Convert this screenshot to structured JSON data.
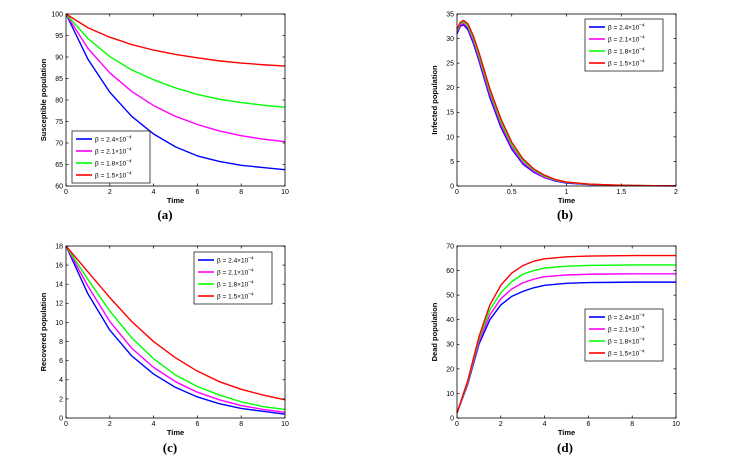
{
  "chart_data": [
    {
      "type": "line",
      "caption": "(a)",
      "xlabel": "Time",
      "ylabel": "Susceptible population",
      "xlim": [
        0,
        10
      ],
      "ylim": [
        60,
        100
      ],
      "xticks": [
        "0",
        "2",
        "4",
        "6",
        "8",
        "10"
      ],
      "yticks": [
        "60",
        "65",
        "70",
        "75",
        "80",
        "85",
        "90",
        "95",
        "100"
      ],
      "legend_position": "bottom-left",
      "x": [
        0,
        1,
        2,
        3,
        4,
        5,
        6,
        7,
        8,
        9,
        10
      ],
      "series": [
        {
          "name": "β = 2.4×10",
          "exp": "−4",
          "color": "#0000ff",
          "values": [
            100,
            89.5,
            81.8,
            76.2,
            72.1,
            69.1,
            67.0,
            65.7,
            64.8,
            64.3,
            63.8
          ]
        },
        {
          "name": "β = 2.1×10",
          "exp": "−4",
          "color": "#ff00ff",
          "values": [
            100,
            92.0,
            86.3,
            82.0,
            78.7,
            76.2,
            74.3,
            72.8,
            71.7,
            70.9,
            70.3
          ]
        },
        {
          "name": "β = 1.8×10",
          "exp": "−4",
          "color": "#00ff00",
          "values": [
            100,
            94.3,
            90.1,
            87.0,
            84.7,
            82.8,
            81.3,
            80.2,
            79.4,
            78.8,
            78.3
          ]
        },
        {
          "name": "β = 1.5×10",
          "exp": "−4",
          "color": "#ff0000",
          "values": [
            100,
            96.8,
            94.6,
            92.9,
            91.6,
            90.6,
            89.8,
            89.1,
            88.6,
            88.2,
            87.9
          ]
        }
      ]
    },
    {
      "type": "line",
      "caption": "(b)",
      "xlabel": "Time",
      "ylabel": "Infected population",
      "xlim": [
        0,
        2
      ],
      "ylim": [
        0,
        35
      ],
      "xticks": [
        "0",
        "0.5",
        "1",
        "1.5",
        "2"
      ],
      "yticks": [
        "0",
        "5",
        "10",
        "15",
        "20",
        "25",
        "30",
        "35"
      ],
      "legend_position": "top-right",
      "x": [
        0,
        0.03,
        0.06,
        0.1,
        0.15,
        0.2,
        0.3,
        0.4,
        0.5,
        0.6,
        0.7,
        0.8,
        0.9,
        1.0,
        1.2,
        1.4,
        1.6,
        1.8,
        2.0
      ],
      "series": [
        {
          "name": "β = 2.4×10",
          "exp": "−4",
          "color": "#0000ff",
          "values": [
            31.0,
            32.5,
            32.8,
            31.8,
            29.0,
            25.5,
            18.0,
            12.0,
            7.5,
            4.5,
            2.8,
            1.7,
            1.0,
            0.6,
            0.3,
            0.15,
            0.08,
            0.04,
            0.02
          ]
        },
        {
          "name": "β = 2.1×10",
          "exp": "−4",
          "color": "#ff00ff",
          "values": [
            31.3,
            32.8,
            33.1,
            32.2,
            29.5,
            26.0,
            18.6,
            12.5,
            7.9,
            4.8,
            3.0,
            1.8,
            1.1,
            0.7,
            0.35,
            0.18,
            0.09,
            0.05,
            0.02
          ]
        },
        {
          "name": "β = 1.8×10",
          "exp": "−4",
          "color": "#00ff00",
          "values": [
            31.6,
            33.1,
            33.4,
            32.6,
            30.0,
            26.6,
            19.2,
            13.1,
            8.4,
            5.2,
            3.3,
            2.0,
            1.2,
            0.75,
            0.38,
            0.2,
            0.1,
            0.05,
            0.03
          ]
        },
        {
          "name": "β = 1.5×10",
          "exp": "−4",
          "color": "#ff0000",
          "values": [
            31.9,
            33.3,
            33.7,
            33.0,
            30.5,
            27.2,
            19.8,
            13.7,
            8.9,
            5.6,
            3.5,
            2.2,
            1.3,
            0.8,
            0.4,
            0.22,
            0.11,
            0.06,
            0.03
          ]
        }
      ]
    },
    {
      "type": "line",
      "caption": "(c)",
      "xlabel": "Time",
      "ylabel": "Recovered population",
      "xlim": [
        0,
        10
      ],
      "ylim": [
        0,
        18
      ],
      "xticks": [
        "0",
        "2",
        "4",
        "6",
        "8",
        "10"
      ],
      "yticks": [
        "0",
        "2",
        "4",
        "6",
        "8",
        "10",
        "12",
        "14",
        "16",
        "18"
      ],
      "legend_position": "top-right",
      "x": [
        0,
        1,
        2,
        3,
        4,
        5,
        6,
        7,
        8,
        9,
        10
      ],
      "series": [
        {
          "name": "β = 2.4×10",
          "exp": "−4",
          "color": "#0000ff",
          "values": [
            18,
            13.0,
            9.2,
            6.5,
            4.6,
            3.2,
            2.2,
            1.5,
            1.0,
            0.7,
            0.4
          ]
        },
        {
          "name": "β = 2.1×10",
          "exp": "−4",
          "color": "#ff00ff",
          "values": [
            18,
            13.8,
            10.1,
            7.3,
            5.3,
            3.8,
            2.7,
            1.9,
            1.3,
            0.9,
            0.6
          ]
        },
        {
          "name": "β = 1.8×10",
          "exp": "−4",
          "color": "#00ff00",
          "values": [
            18,
            14.5,
            11.2,
            8.4,
            6.2,
            4.5,
            3.3,
            2.4,
            1.7,
            1.2,
            0.9
          ]
        },
        {
          "name": "β = 1.5×10",
          "exp": "−4",
          "color": "#ff0000",
          "values": [
            18,
            15.3,
            12.6,
            10.1,
            8.0,
            6.3,
            4.9,
            3.8,
            3.0,
            2.4,
            1.9
          ]
        }
      ]
    },
    {
      "type": "line",
      "caption": "(d)",
      "xlabel": "Time",
      "ylabel": "Dead population",
      "xlim": [
        0,
        10
      ],
      "ylim": [
        0,
        70
      ],
      "xticks": [
        "0",
        "2",
        "4",
        "6",
        "8",
        "10"
      ],
      "yticks": [
        "0",
        "10",
        "20",
        "30",
        "40",
        "50",
        "60",
        "70"
      ],
      "legend_position": "bottom-right",
      "x": [
        0,
        0.5,
        1,
        1.5,
        2,
        2.5,
        3,
        3.5,
        4,
        5,
        6,
        7,
        8,
        9,
        10
      ],
      "series": [
        {
          "name": "β = 2.4×10",
          "exp": "−4",
          "color": "#0000ff",
          "values": [
            2,
            14,
            30,
            40,
            46,
            49.5,
            51.5,
            53,
            54,
            54.8,
            55.1,
            55.2,
            55.3,
            55.3,
            55.3
          ]
        },
        {
          "name": "β = 2.1×10",
          "exp": "−4",
          "color": "#ff00ff",
          "values": [
            2,
            14.5,
            31,
            42,
            48.5,
            52.5,
            55,
            56.5,
            57.5,
            58.2,
            58.5,
            58.6,
            58.7,
            58.7,
            58.7
          ]
        },
        {
          "name": "β = 1.8×10",
          "exp": "−4",
          "color": "#00ff00",
          "values": [
            2,
            15,
            32,
            44,
            51,
            55.5,
            58.5,
            60,
            61,
            61.8,
            62.1,
            62.2,
            62.3,
            62.3,
            62.3
          ]
        },
        {
          "name": "β = 1.5×10",
          "exp": "−4",
          "color": "#ff0000",
          "values": [
            2,
            15.5,
            33,
            46,
            54,
            59,
            62,
            63.8,
            64.8,
            65.6,
            65.9,
            66,
            66.1,
            66.1,
            66.1
          ]
        }
      ]
    }
  ]
}
